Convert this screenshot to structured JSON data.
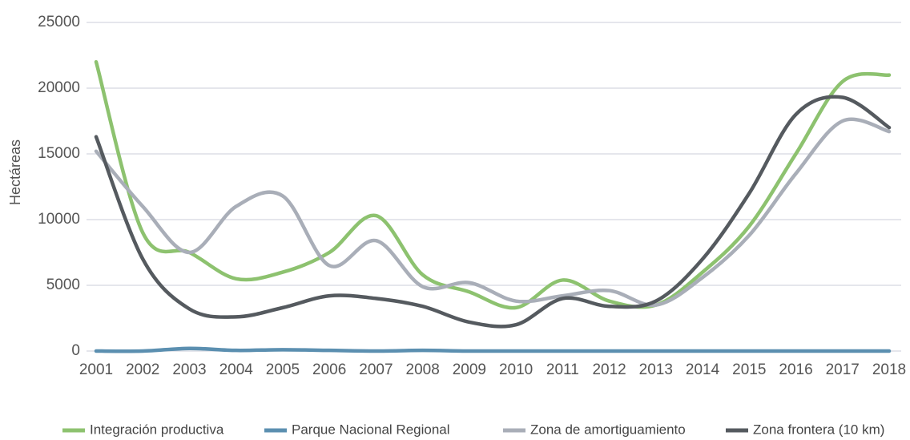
{
  "chart_data": {
    "type": "line",
    "y_label": "Hectáreas",
    "categories": [
      "2001",
      "2002",
      "2003",
      "2004",
      "2005",
      "2006",
      "2007",
      "2008",
      "2009",
      "2010",
      "2011",
      "2012",
      "2013",
      "2014",
      "2015",
      "2016",
      "2017",
      "2018"
    ],
    "series": [
      {
        "name": "Integración productiva",
        "color": "#8dc26f",
        "values": [
          22000,
          9000,
          7500,
          5500,
          6000,
          7500,
          10300,
          5800,
          4500,
          3300,
          5400,
          3800,
          3500,
          6000,
          9500,
          15000,
          20500,
          21000
        ]
      },
      {
        "name": "Parque Nacional Regional",
        "color": "#5b8fb0",
        "values": [
          0,
          0,
          200,
          50,
          100,
          50,
          0,
          50,
          0,
          0,
          0,
          0,
          0,
          0,
          0,
          0,
          0,
          0
        ]
      },
      {
        "name": "Zona de amortiguamiento",
        "color": "#a9aeb8",
        "values": [
          15200,
          11000,
          7500,
          11000,
          11800,
          6500,
          8400,
          4900,
          5200,
          3800,
          4200,
          4600,
          3500,
          5600,
          8800,
          13500,
          17500,
          16700
        ]
      },
      {
        "name": "Zona frontera (10 km)",
        "color": "#555a5f",
        "values": [
          16300,
          7000,
          3200,
          2600,
          3300,
          4200,
          4000,
          3400,
          2200,
          2000,
          4000,
          3400,
          3800,
          7000,
          12000,
          18000,
          19300,
          17000
        ]
      }
    ],
    "ylim": [
      0,
      25000
    ],
    "yticks": [
      0,
      5000,
      10000,
      15000,
      20000,
      25000
    ],
    "grid": true
  }
}
